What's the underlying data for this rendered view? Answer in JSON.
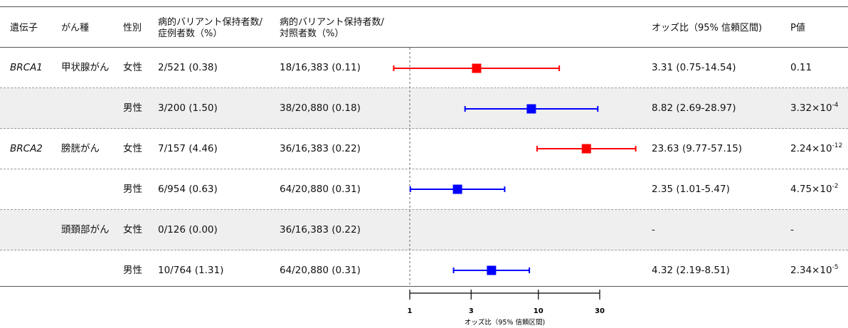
{
  "header": {
    "gene": "遺伝子",
    "cancer": "がん種",
    "sex": "性別",
    "cases_line1": "病的バリアント保持者数/",
    "cases_line2": "症例者数（%）",
    "controls_line1": "病的バリアント保持者数/",
    "controls_line2": "対照者数（%）",
    "or": "オッズ比（95% 信頼区間)",
    "p": "P値"
  },
  "rows": [
    {
      "gene": "BRCA1",
      "cancer": "甲状腺がん",
      "sex": "女性",
      "cases": "2/521 (0.38)",
      "controls": "18/16,383 (0.11)",
      "or_text": "3.31 (0.75-14.54)",
      "p_base": "0.11",
      "p_exp": "",
      "shaded": false
    },
    {
      "gene": "",
      "cancer": "",
      "sex": "男性",
      "cases": "3/200 (1.50)",
      "controls": "38/20,880 (0.18)",
      "or_text": "8.82 (2.69-28.97)",
      "p_base": "3.32×10",
      "p_exp": "-4",
      "shaded": true
    },
    {
      "gene": "BRCA2",
      "cancer": "膀胱がん",
      "sex": "女性",
      "cases": "7/157 (4.46)",
      "controls": "36/16,383 (0.22)",
      "or_text": "23.63 (9.77-57.15)",
      "p_base": "2.24×10",
      "p_exp": "-12",
      "shaded": false
    },
    {
      "gene": "",
      "cancer": "",
      "sex": "男性",
      "cases": "6/954 (0.63)",
      "controls": "64/20,880 (0.31)",
      "or_text": "2.35 (1.01-5.47)",
      "p_base": "4.75×10",
      "p_exp": "-2",
      "shaded": false
    },
    {
      "gene": "",
      "cancer": "頭頚部がん",
      "sex": "女性",
      "cases": "0/126 (0.00)",
      "controls": "36/16,383 (0.22)",
      "or_text": "-",
      "p_base": "-",
      "p_exp": "",
      "shaded": true
    },
    {
      "gene": "",
      "cancer": "",
      "sex": "男性",
      "cases": "10/764 (1.31)",
      "controls": "64/20,880 (0.31)",
      "or_text": "4.32 (2.19-8.51)",
      "p_base": "2.34×10",
      "p_exp": "-5",
      "shaded": false
    }
  ],
  "chart_data": {
    "type": "scatter",
    "plot_kind": "forest",
    "x_scale": "log",
    "xlim": [
      1,
      30
    ],
    "reference_line": 1,
    "xlabel": "オッズ比（95% 信頼区間)",
    "xticks": [
      1,
      3,
      10,
      30
    ],
    "colors": {
      "女性": "#ff0000",
      "男性": "#0000ff"
    },
    "points": [
      {
        "gene": "BRCA1",
        "cancer": "甲状腺がん",
        "sex": "女性",
        "or": 3.31,
        "lo": 0.75,
        "hi": 14.54
      },
      {
        "gene": "BRCA1",
        "cancer": "甲状腺がん",
        "sex": "男性",
        "or": 8.82,
        "lo": 2.69,
        "hi": 28.97
      },
      {
        "gene": "BRCA2",
        "cancer": "膀胱がん",
        "sex": "女性",
        "or": 23.63,
        "lo": 9.77,
        "hi": 57.15
      },
      {
        "gene": "BRCA2",
        "cancer": "膀胱がん",
        "sex": "男性",
        "or": 2.35,
        "lo": 1.01,
        "hi": 5.47
      },
      {
        "gene": "BRCA2",
        "cancer": "頭頚部がん",
        "sex": "女性",
        "or": null,
        "lo": null,
        "hi": null
      },
      {
        "gene": "BRCA2",
        "cancer": "頭頚部がん",
        "sex": "男性",
        "or": 4.32,
        "lo": 2.19,
        "hi": 8.51
      }
    ]
  }
}
